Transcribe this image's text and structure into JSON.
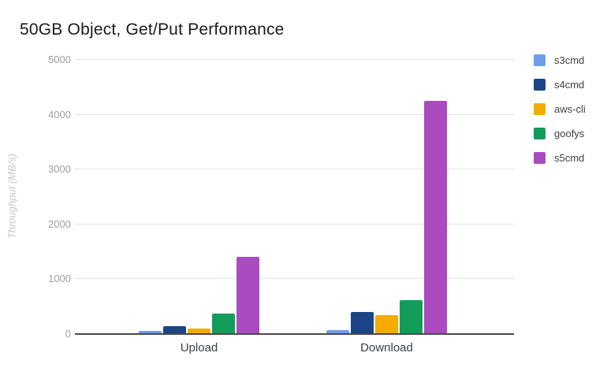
{
  "chart_data": {
    "type": "bar",
    "title": "50GB Object, Get/Put Performance",
    "xlabel": "",
    "ylabel": "Throughput (MB/s)",
    "categories": [
      "Upload",
      "Download"
    ],
    "series": [
      {
        "name": "s3cmd",
        "color": "#6d9eeb",
        "values": [
          45,
          60
        ]
      },
      {
        "name": "s4cmd",
        "color": "#1c4587",
        "values": [
          125,
          395
        ]
      },
      {
        "name": "aws-cli",
        "color": "#f5ab00",
        "values": [
          90,
          330
        ]
      },
      {
        "name": "goofys",
        "color": "#149c5b",
        "values": [
          365,
          600
        ]
      },
      {
        "name": "s5cmd",
        "color": "#ab4bc0",
        "values": [
          1390,
          4235
        ]
      }
    ],
    "ylim": [
      0,
      5000
    ],
    "yticks": [
      0,
      1000,
      2000,
      3000,
      4000,
      5000
    ],
    "grid": true,
    "legend_position": "right",
    "colors": {
      "title_text": "#1b1b1b",
      "tick_text": "#9e9e9e",
      "axis_title_text": "#c6c6c6",
      "category_text": "#3c4043",
      "gridline": "#e3e3e3",
      "baseline": "#4a4a4a",
      "background": "#ffffff"
    }
  }
}
